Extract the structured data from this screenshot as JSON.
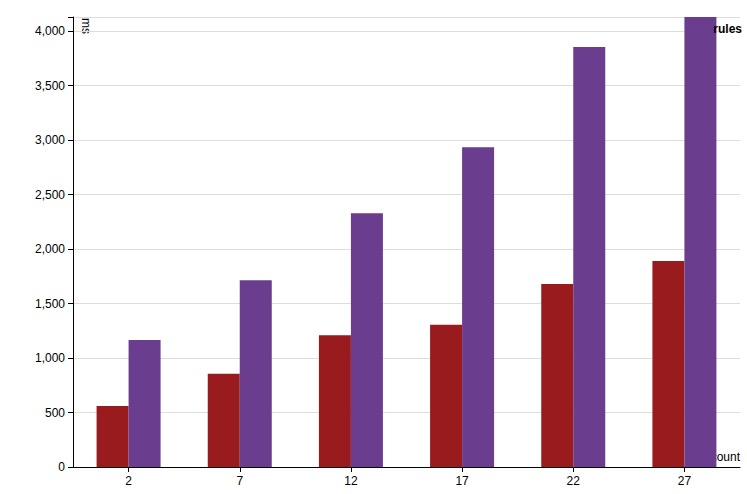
{
  "chart_data": {
    "type": "bar",
    "title": "rules",
    "x_label": "count",
    "y_label": "ms",
    "categories": [
      "2",
      "7",
      "12",
      "17",
      "22",
      "27"
    ],
    "series": [
      {
        "color": "#991b1e",
        "values": [
          560,
          855,
          1210,
          1305,
          1680,
          1890
        ]
      },
      {
        "color": "#6a3d8f",
        "values": [
          1165,
          1715,
          2330,
          2935,
          3855,
          4130
        ]
      }
    ],
    "ylim": [
      0,
      4130
    ],
    "yticks": [
      0,
      500,
      {
        "value": 1000,
        "label": "1,000"
      },
      {
        "value": 1500,
        "label": "1,500"
      },
      {
        "value": 2000,
        "label": "2,000"
      },
      {
        "value": 2500,
        "label": "2,500"
      },
      {
        "value": 3000,
        "label": "3,000"
      },
      {
        "value": 3500,
        "label": "3,500"
      },
      {
        "value": 4000,
        "label": "4,000"
      }
    ],
    "grid": true
  }
}
